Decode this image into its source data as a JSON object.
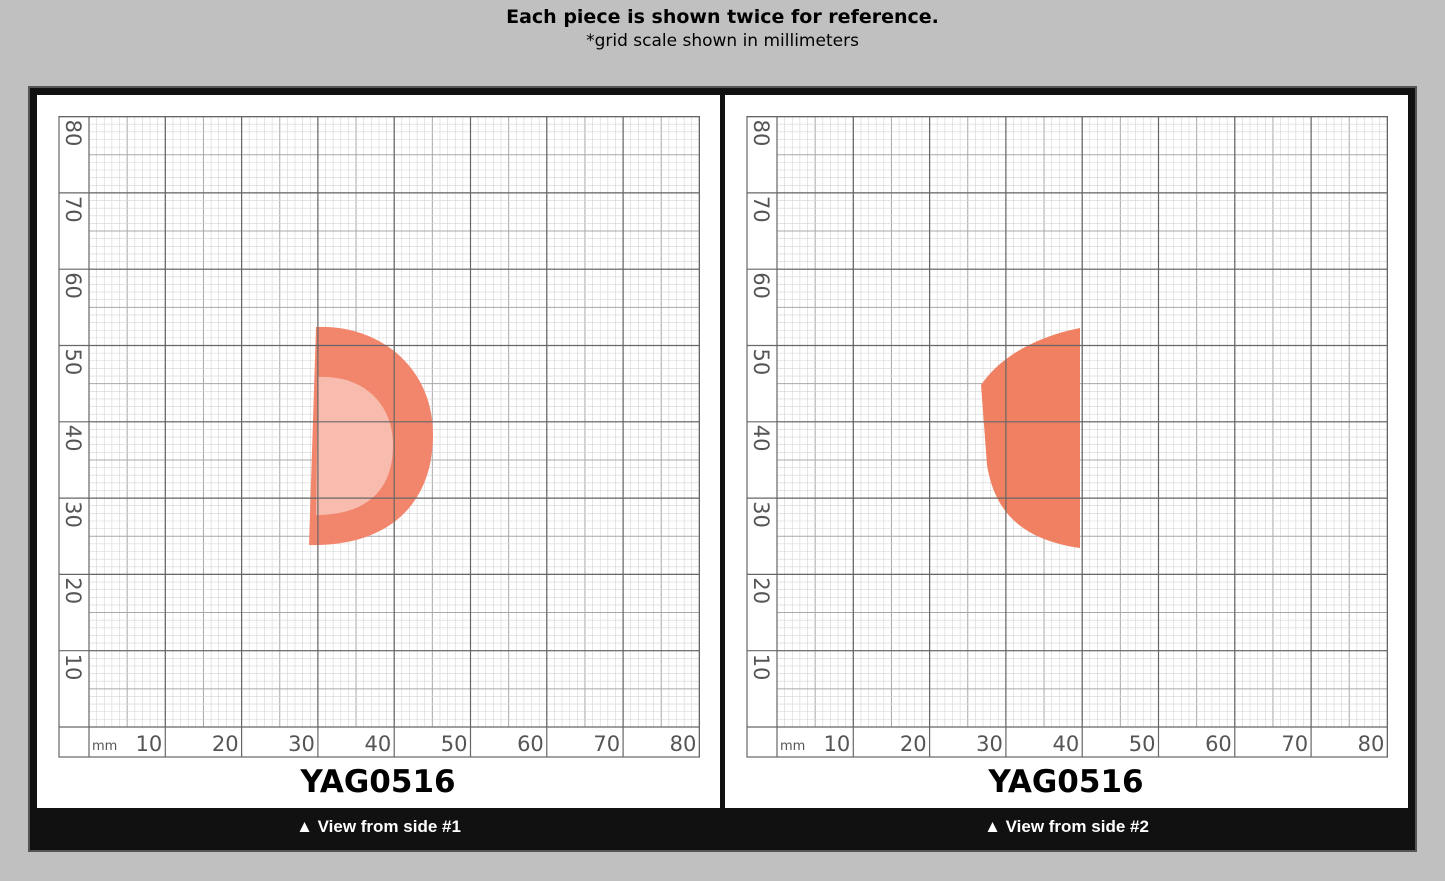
{
  "header": {
    "title": "Each piece is shown twice for reference.",
    "subtitle": "*grid scale shown in millimeters"
  },
  "panels": [
    {
      "grid": {
        "unit": "mm",
        "xticks": [
          10,
          20,
          30,
          40,
          50,
          60,
          70,
          80
        ],
        "yticks": [
          10,
          20,
          30,
          40,
          50,
          60,
          70,
          80
        ]
      },
      "label": "YAG0516",
      "caption": "▲ View from side #1"
    },
    {
      "grid": {
        "unit": "mm",
        "xticks": [
          10,
          20,
          30,
          40,
          50,
          60,
          70,
          80
        ],
        "yticks": [
          10,
          20,
          30,
          40,
          50,
          60,
          70,
          80
        ]
      },
      "label": "YAG0516",
      "caption": "▲ View from side #2"
    }
  ]
}
